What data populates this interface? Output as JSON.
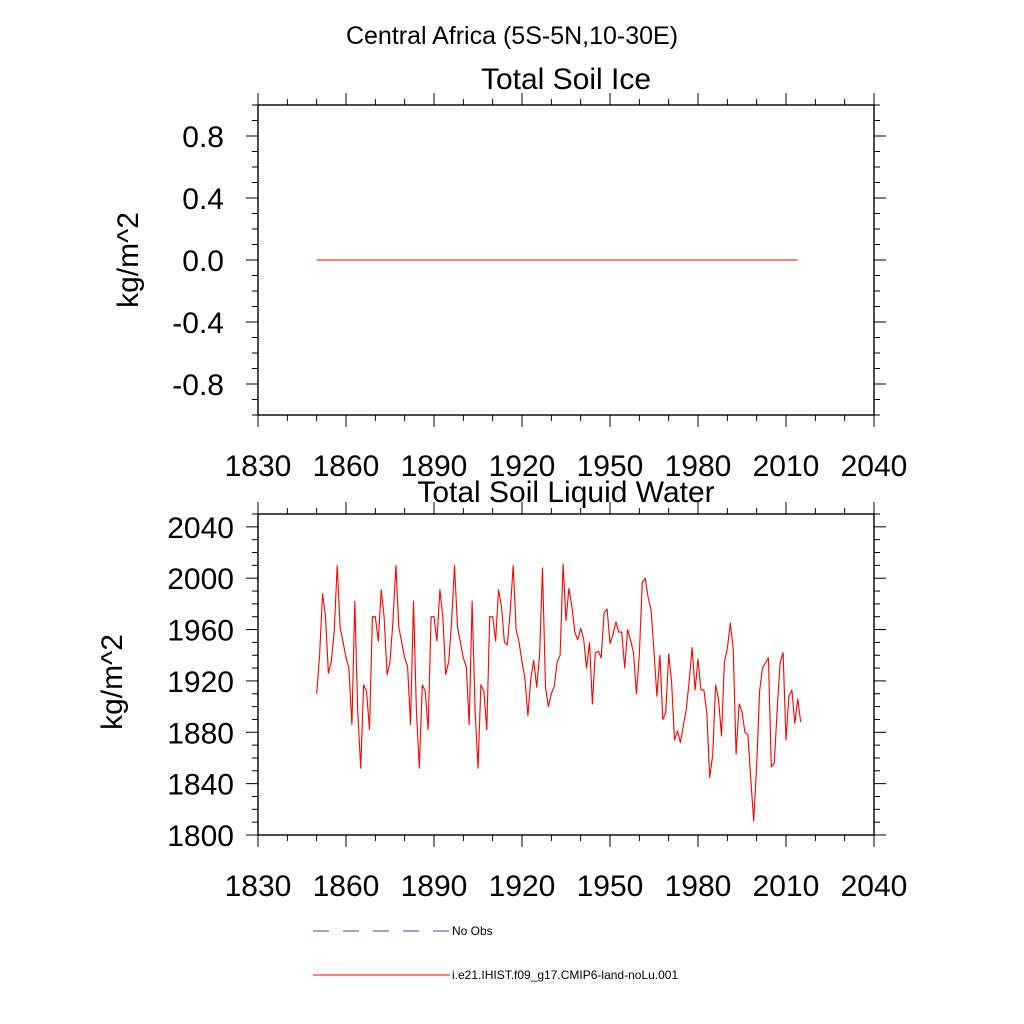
{
  "suptitle": "Central Africa (5S-5N,10-30E)",
  "legend": {
    "items": [
      {
        "label": "No Obs",
        "color": "#3b4a8c",
        "dash": true
      },
      {
        "label": "i.e21.IHIST.f09_g17.CMIP6-land-noLu.001",
        "color": "#ff0000",
        "dash": false
      }
    ]
  },
  "chart_data": [
    {
      "type": "line",
      "title": "Total Soil Ice",
      "ylabel": "kg/m^2",
      "xlabel": "",
      "xlim": [
        1830,
        2040
      ],
      "ylim": [
        -1.0,
        1.0
      ],
      "xticks": [
        1830,
        1860,
        1890,
        1920,
        1950,
        1980,
        2010,
        2040
      ],
      "yticks": [
        -0.8,
        -0.4,
        0.0,
        0.4,
        0.8
      ],
      "ytick_labels": [
        "-0.8",
        "-0.4",
        "0.0",
        "0.4",
        "0.8"
      ],
      "grid": false,
      "series": [
        {
          "name": "i.e21.IHIST.f09_g17.CMIP6-land-noLu.001",
          "color": "#ff0000",
          "x": [
            1850,
            2014
          ],
          "y": [
            0,
            0
          ]
        }
      ]
    },
    {
      "type": "line",
      "title": "Total Soil Liquid Water",
      "ylabel": "kg/m^2",
      "xlabel": "",
      "xlim": [
        1830,
        2040
      ],
      "ylim": [
        1800,
        2050
      ],
      "xticks": [
        1830,
        1860,
        1890,
        1920,
        1950,
        1980,
        2010,
        2040
      ],
      "yticks": [
        1800,
        1840,
        1880,
        1920,
        1960,
        2000,
        2040
      ],
      "ytick_labels": [
        "1800",
        "1840",
        "1880",
        "1920",
        "1960",
        "2000",
        "2040"
      ],
      "grid": false,
      "series": [
        {
          "name": "i.e21.IHIST.f09_g17.CMIP6-land-noLu.001",
          "color": "#ff0000",
          "x_start": 1850,
          "y": [
            1910,
            1940,
            1988,
            1970,
            1926,
            1935,
            1960,
            2010,
            1962,
            1950,
            1938,
            1930,
            1886,
            1982,
            1897,
            1852,
            1917,
            1912,
            1882,
            1970,
            1970,
            1951,
            1991,
            1970,
            1925,
            1935,
            1966,
            2010,
            1962,
            1950,
            1938,
            1931,
            1886,
            1982,
            1897,
            1852,
            1917,
            1912,
            1882,
            1970,
            1970,
            1951,
            1991,
            1970,
            1925,
            1935,
            1966,
            2010,
            1962,
            1950,
            1938,
            1931,
            1886,
            1982,
            1897,
            1852,
            1917,
            1912,
            1882,
            1970,
            1970,
            1951,
            1991,
            1978,
            1950,
            1948,
            1975,
            2010,
            1960,
            1950,
            1935,
            1922,
            1893,
            1922,
            1936,
            1915,
            1940,
            2008,
            1915,
            1900,
            1910,
            1916,
            1935,
            1940,
            2011,
            1967,
            1992,
            1978,
            1958,
            1952,
            1961,
            1953,
            1930,
            1950,
            1902,
            1942,
            1943,
            1938,
            1973,
            1976,
            1949,
            1956,
            1966,
            1958,
            1958,
            1930,
            1960,
            1952,
            1942,
            1910,
            1940,
            1997,
            2000,
            1985,
            1975,
            1943,
            1908,
            1940,
            1890,
            1895,
            1941,
            1919,
            1874,
            1881,
            1872,
            1885,
            1898,
            1920,
            1946,
            1913,
            1937,
            1913,
            1913,
            1895,
            1845,
            1862,
            1917,
            1906,
            1877,
            1935,
            1945,
            1965,
            1945,
            1863,
            1902,
            1896,
            1880,
            1878,
            1843,
            1811,
            1855,
            1912,
            1930,
            1934,
            1938,
            1853,
            1856,
            1898,
            1934,
            1942,
            1874,
            1908,
            1913,
            1887,
            1906,
            1888
          ]
        }
      ]
    }
  ]
}
